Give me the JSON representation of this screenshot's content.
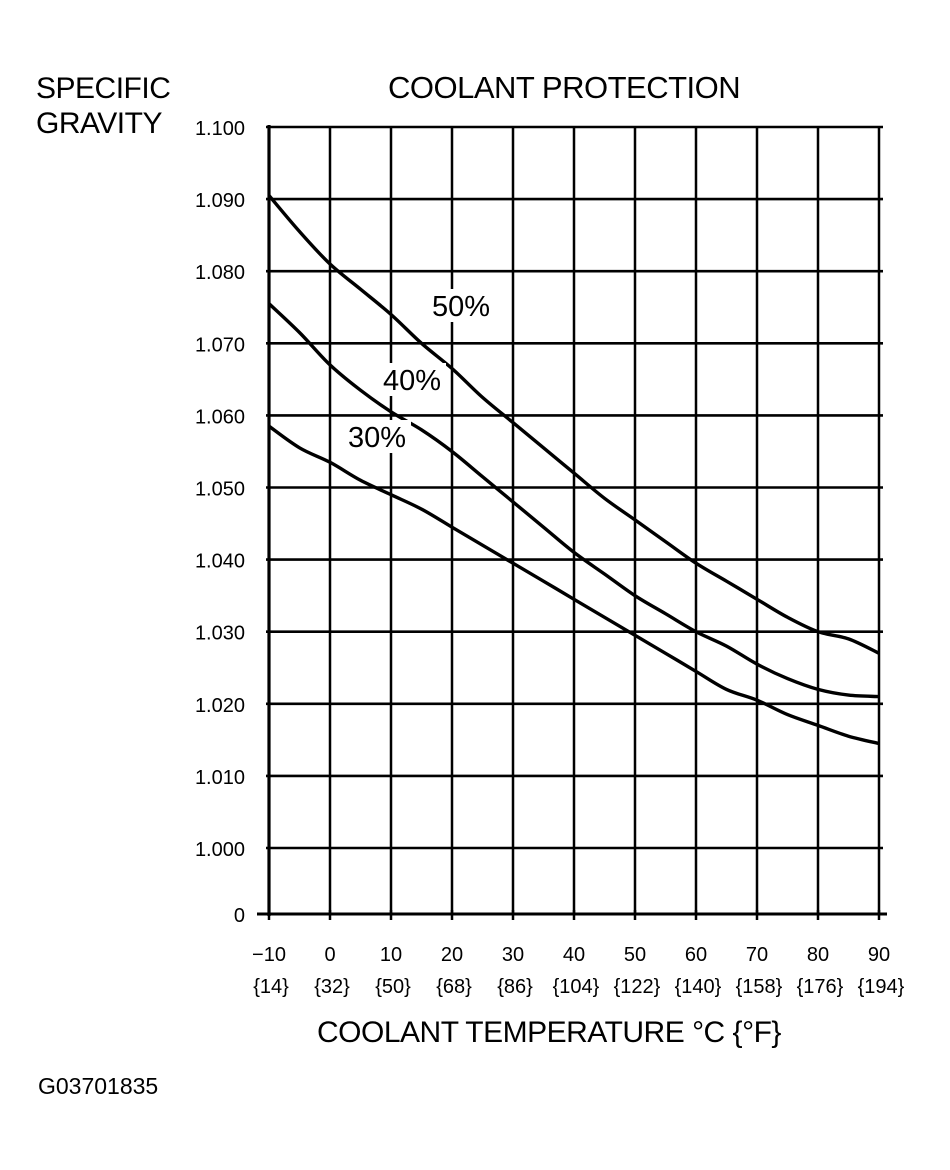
{
  "figure_id": "G03701835",
  "chart_data": {
    "type": "line",
    "title": "COOLANT PROTECTION",
    "ylabel_lines": [
      "SPECIFIC",
      "GRAVITY"
    ],
    "xlabel": "COOLANT TEMPERATURE °C {°F}",
    "x_ticks": [
      -10,
      0,
      10,
      20,
      30,
      40,
      50,
      60,
      70,
      80,
      90
    ],
    "x_tick_labels": [
      "−10",
      "0",
      "10",
      "20",
      "30",
      "40",
      "50",
      "60",
      "70",
      "80",
      "90"
    ],
    "x_tick_labels_f": [
      "{14}",
      "{32}",
      "{50}",
      "{68}",
      "{86}",
      "{104}",
      "{122}",
      "{140}",
      "{158}",
      "{176}",
      "{194}"
    ],
    "y_ticks": [
      1.0,
      1.01,
      1.02,
      1.03,
      1.04,
      1.05,
      1.06,
      1.07,
      1.08,
      1.09,
      1.1
    ],
    "y_tick_labels": [
      "1.000",
      "1.010",
      "1.020",
      "1.030",
      "1.040",
      "1.050",
      "1.060",
      "1.070",
      "1.080",
      "1.090",
      "1.100"
    ],
    "y_zero_label": "0",
    "xlim": [
      -10,
      90
    ],
    "ylim": [
      1.0,
      1.1
    ],
    "grid": true,
    "series": [
      {
        "name": "50%",
        "x": [
          -10,
          -5,
          0,
          5,
          10,
          15,
          20,
          25,
          30,
          35,
          40,
          45,
          50,
          55,
          60,
          65,
          70,
          75,
          80,
          85,
          90
        ],
        "y": [
          1.0905,
          1.0855,
          1.081,
          1.0775,
          1.074,
          1.07,
          1.0665,
          1.0625,
          1.059,
          1.0555,
          1.052,
          1.0485,
          1.0455,
          1.0425,
          1.0395,
          1.037,
          1.0345,
          1.032,
          1.03,
          1.029,
          1.027
        ]
      },
      {
        "name": "40%",
        "x": [
          -10,
          -5,
          0,
          5,
          10,
          15,
          20,
          25,
          30,
          35,
          40,
          45,
          50,
          55,
          60,
          65,
          70,
          75,
          80,
          85,
          90
        ],
        "y": [
          1.0755,
          1.0715,
          1.067,
          1.0635,
          1.0605,
          1.058,
          1.055,
          1.0515,
          1.048,
          1.0445,
          1.041,
          1.038,
          1.035,
          1.0325,
          1.03,
          1.028,
          1.0255,
          1.0235,
          1.022,
          1.0212,
          1.021
        ]
      },
      {
        "name": "30%",
        "x": [
          -10,
          -5,
          0,
          5,
          10,
          15,
          20,
          25,
          30,
          35,
          40,
          45,
          50,
          55,
          60,
          65,
          70,
          75,
          80,
          85,
          90
        ],
        "y": [
          1.0585,
          1.0555,
          1.0535,
          1.051,
          1.049,
          1.047,
          1.0445,
          1.042,
          1.0395,
          1.037,
          1.0345,
          1.032,
          1.0295,
          1.027,
          1.0245,
          1.022,
          1.0205,
          1.0185,
          1.017,
          1.0155,
          1.0145
        ]
      }
    ],
    "annotations": [
      "50%",
      "40%",
      "30%"
    ]
  }
}
